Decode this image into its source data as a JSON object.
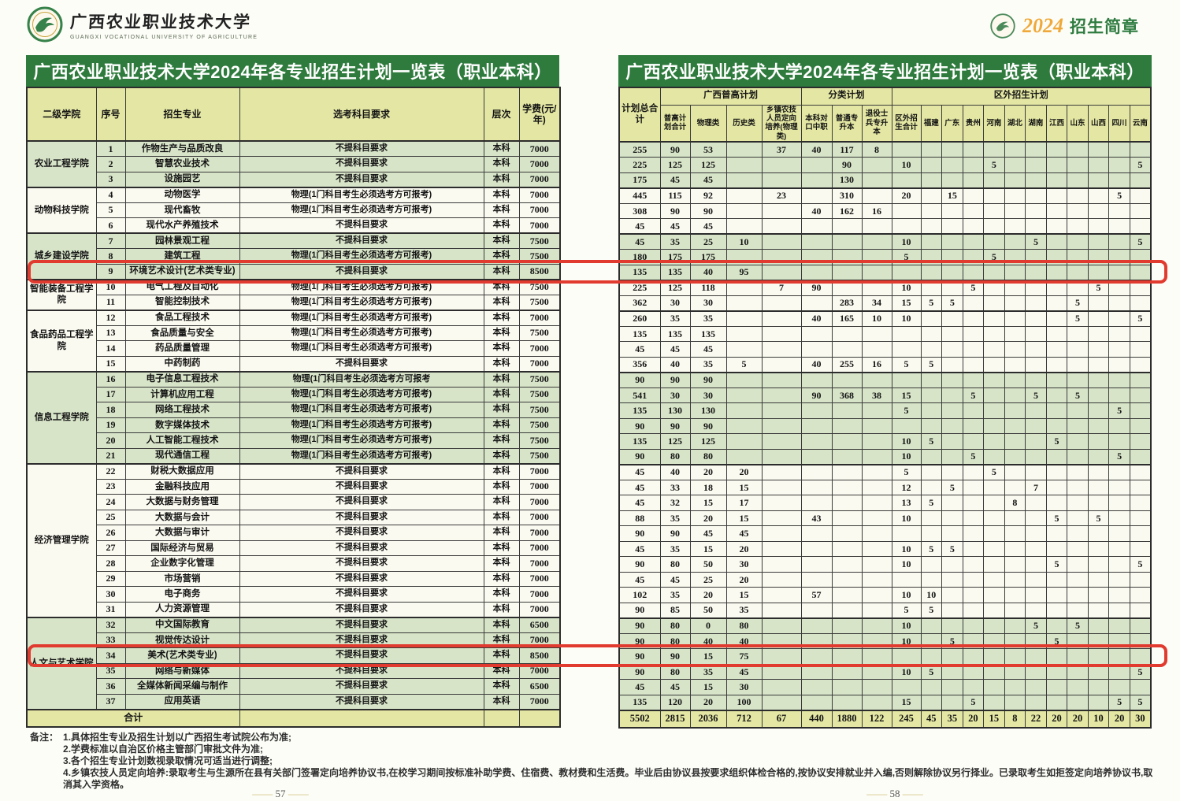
{
  "page": {
    "brand_cn": "广西农业职业技术大学",
    "brand_en": "GUANGXI VOCATIONAL UNIVERSITY OF AGRICULTURE",
    "badge_year": "2024",
    "badge_label": "招生简章",
    "left_title": "广西农业职业技术大学2024年各专业招生计划一览表（职业本科）",
    "right_title": "广西农业职业技术大学2024年各专业招生计划一览表（职业本科）",
    "page_no_left": "57",
    "page_no_right": "58"
  },
  "left_table": {
    "headers": [
      "二级学院",
      "序号",
      "招生专业",
      "选考科目要求",
      "层次",
      "学费(元/年)"
    ]
  },
  "right_table": {
    "top": {
      "total": "计划总合计",
      "gxpg": "广西普高计划",
      "fenlei": "分类计划",
      "quwai": "区外招生计划"
    },
    "sub_headers": [
      "普高计划合计",
      "物理类",
      "历史类",
      "乡镇农技人员定向培养(物理类)",
      "本科对口中职",
      "普通专升本",
      "退役士兵专升本",
      "区外招生合计",
      "福建",
      "广东",
      "贵州",
      "河南",
      "湖北",
      "湖南",
      "江西",
      "山东",
      "山西",
      "四川",
      "云南"
    ]
  },
  "colleges": [
    {
      "name": "农业工程学院",
      "row_count": 3,
      "shade": "g"
    },
    {
      "name": "动物科技学院",
      "row_count": 3,
      "shade": "w"
    },
    {
      "name": "城乡建设学院",
      "row_count": 3,
      "shade": "g"
    },
    {
      "name": "智能装备工程学院",
      "row_count": 2,
      "shade": "w"
    },
    {
      "name": "食品药品工程学院",
      "row_count": 4,
      "shade": "w"
    },
    {
      "name": "信息工程学院",
      "row_count": 6,
      "shade": "g"
    },
    {
      "name": "经济管理学院",
      "row_count": 10,
      "shade": "w"
    },
    {
      "name": "人文与艺术学院",
      "row_count": 6,
      "shade": "g"
    }
  ],
  "rows": [
    {
      "no": "1",
      "major": "作物生产与品质改良",
      "subjects": "不提科目要求",
      "level": "本科",
      "fee": "7000",
      "highlight": false,
      "plan": [
        "255",
        "90",
        "53",
        "",
        "37",
        "40",
        "117",
        "8",
        "",
        "",
        "",
        "",
        "",
        "",
        "",
        "",
        "",
        "",
        "",
        ""
      ]
    },
    {
      "no": "2",
      "major": "智慧农业技术",
      "subjects": "不提科目要求",
      "level": "本科",
      "fee": "7000",
      "highlight": false,
      "plan": [
        "225",
        "125",
        "125",
        "",
        "",
        "",
        "90",
        "",
        "10",
        "",
        "",
        "",
        "5",
        "",
        "",
        "",
        "",
        "",
        "",
        "5"
      ]
    },
    {
      "no": "3",
      "major": "设施园艺",
      "subjects": "不提科目要求",
      "level": "本科",
      "fee": "7000",
      "highlight": false,
      "plan": [
        "175",
        "45",
        "45",
        "",
        "",
        "",
        "130",
        "",
        "",
        "",
        "",
        "",
        "",
        "",
        "",
        "",
        "",
        "",
        "",
        ""
      ]
    },
    {
      "no": "4",
      "major": "动物医学",
      "subjects": "物理(1门科目考生必须选考方可报考)",
      "level": "本科",
      "fee": "7000",
      "highlight": false,
      "plan": [
        "445",
        "115",
        "92",
        "",
        "23",
        "",
        "310",
        "",
        "20",
        "",
        "15",
        "",
        "",
        "",
        "",
        "",
        "",
        "",
        "5",
        ""
      ]
    },
    {
      "no": "5",
      "major": "现代畜牧",
      "subjects": "物理(1门科目考生必须选考方可报考)",
      "level": "本科",
      "fee": "7000",
      "highlight": false,
      "plan": [
        "308",
        "90",
        "90",
        "",
        "",
        "40",
        "162",
        "16",
        "",
        "",
        "",
        "",
        "",
        "",
        "",
        "",
        "",
        "",
        "",
        ""
      ]
    },
    {
      "no": "6",
      "major": "现代水产养殖技术",
      "subjects": "不提科目要求",
      "level": "本科",
      "fee": "7000",
      "highlight": false,
      "plan": [
        "45",
        "45",
        "45",
        "",
        "",
        "",
        "",
        "",
        "",
        "",
        "",
        "",
        "",
        "",
        "",
        "",
        "",
        "",
        "",
        ""
      ]
    },
    {
      "no": "7",
      "major": "园林景观工程",
      "subjects": "不提科目要求",
      "level": "本科",
      "fee": "7500",
      "highlight": false,
      "plan": [
        "45",
        "35",
        "25",
        "10",
        "",
        "",
        "",
        "",
        "10",
        "",
        "",
        "",
        "",
        "",
        "5",
        "",
        "",
        "",
        "",
        "5"
      ]
    },
    {
      "no": "8",
      "major": "建筑工程",
      "subjects": "物理(1门科目考生必须选考方可报考)",
      "level": "本科",
      "fee": "7500",
      "highlight": false,
      "plan": [
        "180",
        "175",
        "175",
        "",
        "",
        "",
        "",
        "",
        "5",
        "",
        "",
        "",
        "5",
        "",
        "",
        "",
        "",
        "",
        "",
        ""
      ]
    },
    {
      "no": "9",
      "major": "环境艺术设计(艺术类专业)",
      "subjects": "不提科目要求",
      "level": "本科",
      "fee": "8500",
      "highlight": true,
      "plan": [
        "135",
        "135",
        "40",
        "95",
        "",
        "",
        "",
        "",
        "",
        "",
        "",
        "",
        "",
        "",
        "",
        "",
        "",
        "",
        "",
        ""
      ]
    },
    {
      "no": "10",
      "major": "电气工程及自动化",
      "subjects": "物理(1门科目考生必须选考方可报考)",
      "level": "本科",
      "fee": "7500",
      "highlight": false,
      "plan": [
        "225",
        "125",
        "118",
        "",
        "7",
        "90",
        "",
        "",
        "10",
        "",
        "",
        "5",
        "",
        "",
        "",
        "",
        "",
        "5",
        "",
        ""
      ]
    },
    {
      "no": "11",
      "major": "智能控制技术",
      "subjects": "物理(1门科目考生必须选考方可报考)",
      "level": "本科",
      "fee": "7500",
      "highlight": false,
      "plan": [
        "362",
        "30",
        "30",
        "",
        "",
        "",
        "283",
        "34",
        "15",
        "5",
        "5",
        "",
        "",
        "",
        "",
        "",
        "5",
        "",
        "",
        ""
      ]
    },
    {
      "no": "12",
      "major": "食品工程技术",
      "subjects": "物理(1门科目考生必须选考方可报考)",
      "level": "本科",
      "fee": "7000",
      "highlight": false,
      "plan": [
        "260",
        "35",
        "35",
        "",
        "",
        "40",
        "165",
        "10",
        "10",
        "",
        "",
        "",
        "",
        "",
        "",
        "",
        "5",
        "",
        "",
        "5"
      ]
    },
    {
      "no": "13",
      "major": "食品质量与安全",
      "subjects": "物理(1门科目考生必须选考方可报考)",
      "level": "本科",
      "fee": "7500",
      "highlight": false,
      "plan": [
        "135",
        "135",
        "135",
        "",
        "",
        "",
        "",
        "",
        "",
        "",
        "",
        "",
        "",
        "",
        "",
        "",
        "",
        "",
        "",
        ""
      ]
    },
    {
      "no": "14",
      "major": "药品质量管理",
      "subjects": "物理(1门科目考生必须选考方可报考)",
      "level": "本科",
      "fee": "7000",
      "highlight": false,
      "plan": [
        "45",
        "45",
        "45",
        "",
        "",
        "",
        "",
        "",
        "",
        "",
        "",
        "",
        "",
        "",
        "",
        "",
        "",
        "",
        "",
        ""
      ]
    },
    {
      "no": "15",
      "major": "中药制药",
      "subjects": "不提科目要求",
      "level": "本科",
      "fee": "7000",
      "highlight": false,
      "plan": [
        "356",
        "40",
        "35",
        "5",
        "",
        "40",
        "255",
        "16",
        "5",
        "5",
        "",
        "",
        "",
        "",
        "",
        "",
        "",
        "",
        "",
        ""
      ]
    },
    {
      "no": "16",
      "major": "电子信息工程技术",
      "subjects": "物理(1门科目考生必须选考方可报考",
      "level": "本科",
      "fee": "7500",
      "highlight": false,
      "plan": [
        "90",
        "90",
        "90",
        "",
        "",
        "",
        "",
        "",
        "",
        "",
        "",
        "",
        "",
        "",
        "",
        "",
        "",
        "",
        "",
        ""
      ]
    },
    {
      "no": "17",
      "major": "计算机应用工程",
      "subjects": "物理(1门科目考生必须选考方可报考)",
      "level": "本科",
      "fee": "7500",
      "highlight": false,
      "plan": [
        "541",
        "30",
        "30",
        "",
        "",
        "90",
        "368",
        "38",
        "15",
        "",
        "",
        "5",
        "",
        "",
        "5",
        "",
        "5",
        "",
        "",
        ""
      ]
    },
    {
      "no": "18",
      "major": "网络工程技术",
      "subjects": "物理(1门科目考生必须选考方可报考)",
      "level": "本科",
      "fee": "7500",
      "highlight": false,
      "plan": [
        "135",
        "130",
        "130",
        "",
        "",
        "",
        "",
        "",
        "5",
        "",
        "",
        "",
        "",
        "",
        "",
        "",
        "",
        "",
        "5",
        ""
      ]
    },
    {
      "no": "19",
      "major": "数字媒体技术",
      "subjects": "物理(1门科目考生必须选考方可报考)",
      "level": "本科",
      "fee": "7500",
      "highlight": false,
      "plan": [
        "90",
        "90",
        "90",
        "",
        "",
        "",
        "",
        "",
        "",
        "",
        "",
        "",
        "",
        "",
        "",
        "",
        "",
        "",
        "",
        ""
      ]
    },
    {
      "no": "20",
      "major": "人工智能工程技术",
      "subjects": "物理(1门科目考生必须选考方可报考)",
      "level": "本科",
      "fee": "7500",
      "highlight": false,
      "plan": [
        "135",
        "125",
        "125",
        "",
        "",
        "",
        "",
        "",
        "10",
        "5",
        "",
        "",
        "",
        "",
        "",
        "5",
        "",
        "",
        "",
        ""
      ]
    },
    {
      "no": "21",
      "major": "现代通信工程",
      "subjects": "物理(1门科目考生必须选考方可报考)",
      "level": "本科",
      "fee": "7500",
      "highlight": false,
      "plan": [
        "90",
        "80",
        "80",
        "",
        "",
        "",
        "",
        "",
        "10",
        "",
        "",
        "5",
        "",
        "",
        "",
        "",
        "",
        "",
        "5",
        ""
      ]
    },
    {
      "no": "22",
      "major": "财税大数据应用",
      "subjects": "不提科目要求",
      "level": "本科",
      "fee": "7000",
      "highlight": false,
      "plan": [
        "45",
        "40",
        "20",
        "20",
        "",
        "",
        "",
        "",
        "5",
        "",
        "",
        "",
        "5",
        "",
        "",
        "",
        "",
        "",
        "",
        ""
      ]
    },
    {
      "no": "23",
      "major": "金融科技应用",
      "subjects": "不提科目要求",
      "level": "本科",
      "fee": "7000",
      "highlight": false,
      "plan": [
        "45",
        "33",
        "18",
        "15",
        "",
        "",
        "",
        "",
        "12",
        "",
        "5",
        "",
        "",
        "",
        "7",
        "",
        "",
        "",
        "",
        ""
      ]
    },
    {
      "no": "24",
      "major": "大数据与财务管理",
      "subjects": "不提科目要求",
      "level": "本科",
      "fee": "7000",
      "highlight": false,
      "plan": [
        "45",
        "32",
        "15",
        "17",
        "",
        "",
        "",
        "",
        "13",
        "5",
        "",
        "",
        "",
        "8",
        "",
        "",
        "",
        "",
        "",
        ""
      ]
    },
    {
      "no": "25",
      "major": "大数据与会计",
      "subjects": "不提科目要求",
      "level": "本科",
      "fee": "7000",
      "highlight": false,
      "plan": [
        "88",
        "35",
        "20",
        "15",
        "",
        "43",
        "",
        "",
        "10",
        "",
        "",
        "",
        "",
        "",
        "",
        "5",
        "",
        "5",
        "",
        ""
      ]
    },
    {
      "no": "26",
      "major": "大数据与审计",
      "subjects": "不提科目要求",
      "level": "本科",
      "fee": "7000",
      "highlight": false,
      "plan": [
        "90",
        "90",
        "45",
        "45",
        "",
        "",
        "",
        "",
        "",
        "",
        "",
        "",
        "",
        "",
        "",
        "",
        "",
        "",
        "",
        ""
      ]
    },
    {
      "no": "27",
      "major": "国际经济与贸易",
      "subjects": "不提科目要求",
      "level": "本科",
      "fee": "7000",
      "highlight": false,
      "plan": [
        "45",
        "35",
        "15",
        "20",
        "",
        "",
        "",
        "",
        "10",
        "5",
        "5",
        "",
        "",
        "",
        "",
        "",
        "",
        "",
        "",
        ""
      ]
    },
    {
      "no": "28",
      "major": "企业数字化管理",
      "subjects": "不提科目要求",
      "level": "本科",
      "fee": "7000",
      "highlight": false,
      "plan": [
        "90",
        "80",
        "50",
        "30",
        "",
        "",
        "",
        "",
        "10",
        "",
        "",
        "",
        "",
        "",
        "",
        "5",
        "",
        "",
        "",
        "5"
      ]
    },
    {
      "no": "29",
      "major": "市场营销",
      "subjects": "不提科目要求",
      "level": "本科",
      "fee": "7000",
      "highlight": false,
      "plan": [
        "45",
        "45",
        "25",
        "20",
        "",
        "",
        "",
        "",
        "",
        "",
        "",
        "",
        "",
        "",
        "",
        "",
        "",
        "",
        "",
        ""
      ]
    },
    {
      "no": "30",
      "major": "电子商务",
      "subjects": "不提科目要求",
      "level": "本科",
      "fee": "7000",
      "highlight": false,
      "plan": [
        "102",
        "35",
        "20",
        "15",
        "",
        "57",
        "",
        "",
        "10",
        "10",
        "",
        "",
        "",
        "",
        "",
        "",
        "",
        "",
        "",
        ""
      ]
    },
    {
      "no": "31",
      "major": "人力资源管理",
      "subjects": "不提科目要求",
      "level": "本科",
      "fee": "7000",
      "highlight": false,
      "plan": [
        "90",
        "85",
        "50",
        "35",
        "",
        "",
        "",
        "",
        "5",
        "5",
        "",
        "",
        "",
        "",
        "",
        "",
        "",
        "",
        "",
        ""
      ]
    },
    {
      "no": "32",
      "major": "中文国际教育",
      "subjects": "不提科目要求",
      "level": "本科",
      "fee": "6500",
      "highlight": false,
      "plan": [
        "90",
        "80",
        "0",
        "80",
        "",
        "",
        "",
        "",
        "10",
        "",
        "",
        "",
        "",
        "",
        "5",
        "",
        "5",
        "",
        "",
        ""
      ]
    },
    {
      "no": "33",
      "major": "视觉传达设计",
      "subjects": "不提科目要求",
      "level": "本科",
      "fee": "7000",
      "highlight": false,
      "plan": [
        "90",
        "80",
        "40",
        "40",
        "",
        "",
        "",
        "",
        "10",
        "",
        "5",
        "",
        "",
        "",
        "",
        "5",
        "",
        "",
        "",
        ""
      ]
    },
    {
      "no": "34",
      "major": "美术(艺术类专业)",
      "subjects": "不提科目要求",
      "level": "本科",
      "fee": "8500",
      "highlight": true,
      "plan": [
        "90",
        "90",
        "15",
        "75",
        "",
        "",
        "",
        "",
        "",
        "",
        "",
        "",
        "",
        "",
        "",
        "",
        "",
        "",
        "",
        ""
      ]
    },
    {
      "no": "35",
      "major": "网络与新媒体",
      "subjects": "不提科目要求",
      "level": "本科",
      "fee": "7000",
      "highlight": false,
      "plan": [
        "90",
        "80",
        "35",
        "45",
        "",
        "",
        "",
        "",
        "10",
        "5",
        "",
        "",
        "",
        "",
        "",
        "",
        "",
        "",
        "",
        "5"
      ]
    },
    {
      "no": "36",
      "major": "全媒体新闻采编与制作",
      "subjects": "不提科目要求",
      "level": "本科",
      "fee": "6500",
      "highlight": false,
      "plan": [
        "45",
        "45",
        "15",
        "30",
        "",
        "",
        "",
        "",
        "",
        "",
        "",
        "",
        "",
        "",
        "",
        "",
        "",
        "",
        "",
        ""
      ]
    },
    {
      "no": "37",
      "major": "应用英语",
      "subjects": "不提科目要求",
      "level": "本科",
      "fee": "7000",
      "highlight": false,
      "plan": [
        "135",
        "120",
        "20",
        "100",
        "",
        "",
        "",
        "",
        "15",
        "",
        "",
        "5",
        "",
        "",
        "",
        "",
        "",
        "",
        "5",
        "5"
      ]
    }
  ],
  "totals": {
    "label": "合计",
    "plan": [
      "5502",
      "2815",
      "2036",
      "712",
      "67",
      "440",
      "1880",
      "122",
      "245",
      "45",
      "35",
      "20",
      "15",
      "8",
      "22",
      "20",
      "20",
      "10",
      "20",
      "30"
    ]
  },
  "notes": {
    "label": "备注：",
    "items": [
      "1.具体招生专业及招生计划以广西招生考试院公布为准;",
      "2.学费标准以自治区价格主管部门审批文件为准;",
      "3.各个招生专业计划数视录取情况可适当进行调整;",
      "4.乡镇农技人员定向培养:录取考生与生源所在县有关部门签署定向培养协议书,在校学习期间按标准补助学费、住宿费、教材费和生活费。毕业后由协议县按要求组织体检合格的,按协议安排就业并入编,否则解除协议另行择业。已录取考生如拒签定向培养协议书,取消其入学资格。"
    ]
  },
  "colors": {
    "title_bar_green": "#2e7b3d",
    "header_yellow": "#e4e7a3",
    "row_green": "#d7e4c8",
    "row_cream": "#fbfaf0",
    "highlight_red": "#e13a2e",
    "badge_orange": "#efa93a"
  }
}
